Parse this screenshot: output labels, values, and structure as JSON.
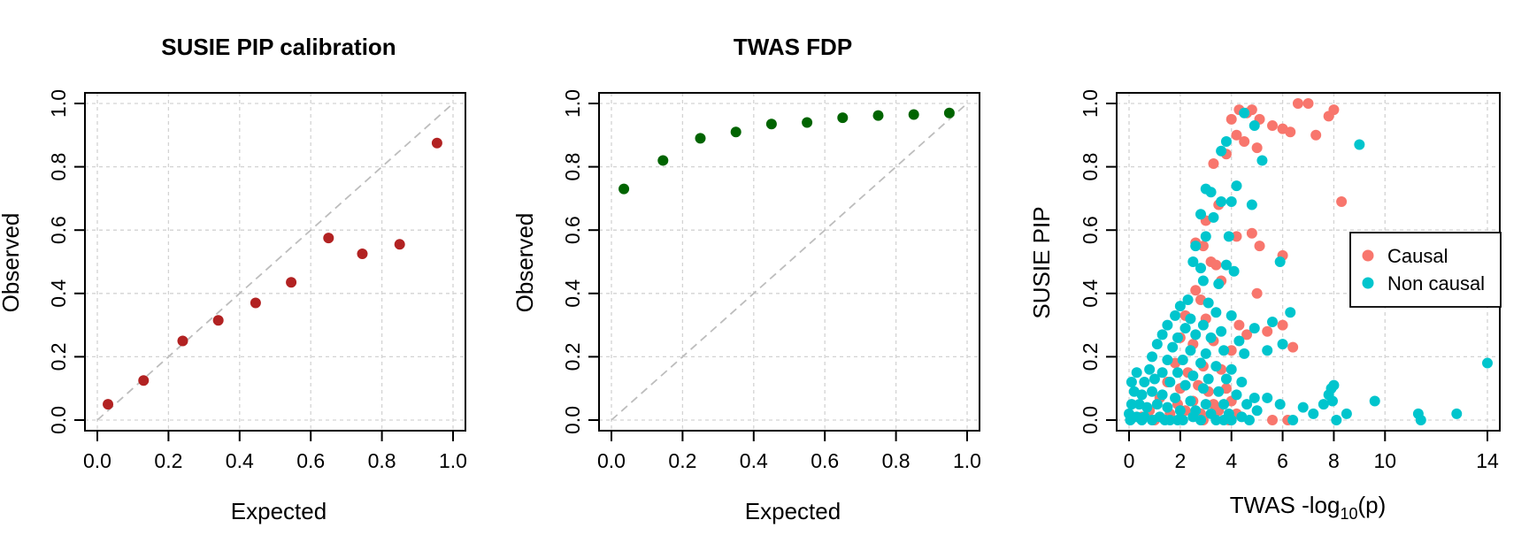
{
  "chart_data": [
    {
      "type": "scatter",
      "title": "SUSIE PIP calibration",
      "xlabel": "Expected",
      "ylabel": "Observed",
      "xlim": [
        0,
        1
      ],
      "ylim": [
        0,
        1
      ],
      "xticks": [
        "0.0",
        "0.2",
        "0.4",
        "0.6",
        "0.8",
        "1.0"
      ],
      "yticks": [
        "0.0",
        "0.2",
        "0.4",
        "0.6",
        "0.8",
        "1.0"
      ],
      "grid": true,
      "reference_line": "y = x (dashed)",
      "point_color": "#b22222",
      "points": [
        {
          "x": 0.03,
          "y": 0.05
        },
        {
          "x": 0.13,
          "y": 0.125
        },
        {
          "x": 0.24,
          "y": 0.25
        },
        {
          "x": 0.34,
          "y": 0.315
        },
        {
          "x": 0.445,
          "y": 0.37
        },
        {
          "x": 0.545,
          "y": 0.435
        },
        {
          "x": 0.65,
          "y": 0.575
        },
        {
          "x": 0.745,
          "y": 0.525
        },
        {
          "x": 0.85,
          "y": 0.555
        },
        {
          "x": 0.955,
          "y": 0.875
        }
      ]
    },
    {
      "type": "scatter",
      "title": "TWAS FDP",
      "xlabel": "Expected",
      "ylabel": "Observed",
      "xlim": [
        0,
        1
      ],
      "ylim": [
        0,
        1
      ],
      "xticks": [
        "0.0",
        "0.2",
        "0.4",
        "0.6",
        "0.8",
        "1.0"
      ],
      "yticks": [
        "0.0",
        "0.2",
        "0.4",
        "0.6",
        "0.8",
        "1.0"
      ],
      "grid": true,
      "reference_line": "y = x (dashed)",
      "point_color": "#006400",
      "points": [
        {
          "x": 0.035,
          "y": 0.73
        },
        {
          "x": 0.145,
          "y": 0.82
        },
        {
          "x": 0.25,
          "y": 0.89
        },
        {
          "x": 0.35,
          "y": 0.91
        },
        {
          "x": 0.45,
          "y": 0.935
        },
        {
          "x": 0.55,
          "y": 0.94
        },
        {
          "x": 0.65,
          "y": 0.955
        },
        {
          "x": 0.75,
          "y": 0.962
        },
        {
          "x": 0.85,
          "y": 0.965
        },
        {
          "x": 0.95,
          "y": 0.97
        }
      ]
    },
    {
      "type": "scatter",
      "title": "",
      "xlabel_main": "TWAS -log",
      "xlabel_sub": "10",
      "xlabel_end": "(p)",
      "ylabel": "SUSIE PIP",
      "xlim": [
        0,
        14
      ],
      "ylim": [
        0,
        1
      ],
      "xticks": [
        "0",
        "2",
        "4",
        "6",
        "8",
        "10",
        "14"
      ],
      "yticks": [
        "0.0",
        "0.2",
        "0.4",
        "0.6",
        "0.8",
        "1.0"
      ],
      "grid": true,
      "legend_position": "right",
      "series": [
        {
          "name": "Causal",
          "color": "#f8766d",
          "points": [
            {
              "x": 4.0,
              "y": 0.95
            },
            {
              "x": 4.3,
              "y": 0.98
            },
            {
              "x": 4.6,
              "y": 0.97
            },
            {
              "x": 4.8,
              "y": 0.98
            },
            {
              "x": 5.1,
              "y": 0.95
            },
            {
              "x": 5.6,
              "y": 0.93
            },
            {
              "x": 6.0,
              "y": 0.92
            },
            {
              "x": 6.3,
              "y": 0.91
            },
            {
              "x": 6.6,
              "y": 1.0
            },
            {
              "x": 7.0,
              "y": 1.0
            },
            {
              "x": 7.8,
              "y": 0.96
            },
            {
              "x": 8.0,
              "y": 0.98
            },
            {
              "x": 7.3,
              "y": 0.9
            },
            {
              "x": 4.2,
              "y": 0.9
            },
            {
              "x": 4.5,
              "y": 0.88
            },
            {
              "x": 5.0,
              "y": 0.86
            },
            {
              "x": 3.3,
              "y": 0.81
            },
            {
              "x": 3.8,
              "y": 0.84
            },
            {
              "x": 8.3,
              "y": 0.69
            },
            {
              "x": 3.5,
              "y": 0.68
            },
            {
              "x": 3.0,
              "y": 0.63
            },
            {
              "x": 2.6,
              "y": 0.56
            },
            {
              "x": 2.9,
              "y": 0.55
            },
            {
              "x": 4.2,
              "y": 0.58
            },
            {
              "x": 4.8,
              "y": 0.59
            },
            {
              "x": 5.1,
              "y": 0.55
            },
            {
              "x": 3.2,
              "y": 0.5
            },
            {
              "x": 3.4,
              "y": 0.49
            },
            {
              "x": 6.0,
              "y": 0.52
            },
            {
              "x": 2.6,
              "y": 0.41
            },
            {
              "x": 2.8,
              "y": 0.38
            },
            {
              "x": 3.6,
              "y": 0.44
            },
            {
              "x": 5.0,
              "y": 0.4
            },
            {
              "x": 2.2,
              "y": 0.33
            },
            {
              "x": 3.0,
              "y": 0.32
            },
            {
              "x": 4.3,
              "y": 0.3
            },
            {
              "x": 5.4,
              "y": 0.28
            },
            {
              "x": 6.0,
              "y": 0.3
            },
            {
              "x": 2.0,
              "y": 0.26
            },
            {
              "x": 2.5,
              "y": 0.24
            },
            {
              "x": 3.3,
              "y": 0.25
            },
            {
              "x": 4.0,
              "y": 0.22
            },
            {
              "x": 4.6,
              "y": 0.27
            },
            {
              "x": 6.4,
              "y": 0.23
            },
            {
              "x": 1.8,
              "y": 0.18
            },
            {
              "x": 2.3,
              "y": 0.15
            },
            {
              "x": 2.9,
              "y": 0.17
            },
            {
              "x": 3.6,
              "y": 0.16
            },
            {
              "x": 1.5,
              "y": 0.12
            },
            {
              "x": 2.0,
              "y": 0.1
            },
            {
              "x": 2.7,
              "y": 0.11
            },
            {
              "x": 3.1,
              "y": 0.09
            },
            {
              "x": 3.8,
              "y": 0.1
            },
            {
              "x": 1.2,
              "y": 0.07
            },
            {
              "x": 1.9,
              "y": 0.05
            },
            {
              "x": 2.5,
              "y": 0.06
            },
            {
              "x": 3.3,
              "y": 0.05
            },
            {
              "x": 4.0,
              "y": 0.06
            },
            {
              "x": 0.8,
              "y": 0.03
            },
            {
              "x": 1.6,
              "y": 0.02
            },
            {
              "x": 2.2,
              "y": 0.03
            },
            {
              "x": 2.8,
              "y": 0.02
            },
            {
              "x": 3.5,
              "y": 0.03
            },
            {
              "x": 4.2,
              "y": 0.02
            },
            {
              "x": 0.5,
              "y": 0.01
            },
            {
              "x": 1.0,
              "y": 0.0
            },
            {
              "x": 5.6,
              "y": 0.0
            },
            {
              "x": 6.2,
              "y": 0.0
            },
            {
              "x": 2.9,
              "y": 0.0
            },
            {
              "x": 3.9,
              "y": 0.0
            }
          ]
        },
        {
          "name": "Non causal",
          "color": "#00c5cd",
          "points": [
            {
              "x": 4.5,
              "y": 0.97
            },
            {
              "x": 3.8,
              "y": 0.88
            },
            {
              "x": 3.6,
              "y": 0.85
            },
            {
              "x": 4.9,
              "y": 0.93
            },
            {
              "x": 5.2,
              "y": 0.82
            },
            {
              "x": 9.0,
              "y": 0.87
            },
            {
              "x": 3.0,
              "y": 0.73
            },
            {
              "x": 3.2,
              "y": 0.72
            },
            {
              "x": 4.2,
              "y": 0.74
            },
            {
              "x": 3.6,
              "y": 0.69
            },
            {
              "x": 4.0,
              "y": 0.69
            },
            {
              "x": 4.8,
              "y": 0.68
            },
            {
              "x": 2.8,
              "y": 0.65
            },
            {
              "x": 3.3,
              "y": 0.64
            },
            {
              "x": 3.9,
              "y": 0.58
            },
            {
              "x": 3.0,
              "y": 0.58
            },
            {
              "x": 2.6,
              "y": 0.55
            },
            {
              "x": 5.9,
              "y": 0.5
            },
            {
              "x": 3.8,
              "y": 0.49
            },
            {
              "x": 2.5,
              "y": 0.5
            },
            {
              "x": 2.8,
              "y": 0.48
            },
            {
              "x": 4.1,
              "y": 0.47
            },
            {
              "x": 2.9,
              "y": 0.44
            },
            {
              "x": 3.5,
              "y": 0.43
            },
            {
              "x": 2.3,
              "y": 0.38
            },
            {
              "x": 2.0,
              "y": 0.36
            },
            {
              "x": 3.1,
              "y": 0.37
            },
            {
              "x": 1.8,
              "y": 0.33
            },
            {
              "x": 2.4,
              "y": 0.32
            },
            {
              "x": 3.4,
              "y": 0.34
            },
            {
              "x": 4.0,
              "y": 0.33
            },
            {
              "x": 5.6,
              "y": 0.31
            },
            {
              "x": 6.3,
              "y": 0.34
            },
            {
              "x": 1.5,
              "y": 0.3
            },
            {
              "x": 2.2,
              "y": 0.29
            },
            {
              "x": 2.9,
              "y": 0.3
            },
            {
              "x": 3.6,
              "y": 0.28
            },
            {
              "x": 4.9,
              "y": 0.29
            },
            {
              "x": 1.3,
              "y": 0.27
            },
            {
              "x": 1.9,
              "y": 0.26
            },
            {
              "x": 2.6,
              "y": 0.27
            },
            {
              "x": 3.2,
              "y": 0.26
            },
            {
              "x": 4.3,
              "y": 0.25
            },
            {
              "x": 6.0,
              "y": 0.24
            },
            {
              "x": 5.4,
              "y": 0.22
            },
            {
              "x": 1.1,
              "y": 0.24
            },
            {
              "x": 1.7,
              "y": 0.23
            },
            {
              "x": 2.4,
              "y": 0.22
            },
            {
              "x": 3.0,
              "y": 0.21
            },
            {
              "x": 3.7,
              "y": 0.22
            },
            {
              "x": 4.5,
              "y": 0.21
            },
            {
              "x": 0.9,
              "y": 0.2
            },
            {
              "x": 1.5,
              "y": 0.19
            },
            {
              "x": 2.1,
              "y": 0.19
            },
            {
              "x": 2.8,
              "y": 0.18
            },
            {
              "x": 3.4,
              "y": 0.17
            },
            {
              "x": 4.0,
              "y": 0.16
            },
            {
              "x": 0.3,
              "y": 0.15
            },
            {
              "x": 0.8,
              "y": 0.16
            },
            {
              "x": 1.3,
              "y": 0.15
            },
            {
              "x": 1.9,
              "y": 0.15
            },
            {
              "x": 2.5,
              "y": 0.14
            },
            {
              "x": 3.1,
              "y": 0.13
            },
            {
              "x": 3.8,
              "y": 0.13
            },
            {
              "x": 4.4,
              "y": 0.12
            },
            {
              "x": 0.1,
              "y": 0.12
            },
            {
              "x": 0.6,
              "y": 0.12
            },
            {
              "x": 1.0,
              "y": 0.13
            },
            {
              "x": 1.6,
              "y": 0.12
            },
            {
              "x": 2.2,
              "y": 0.11
            },
            {
              "x": 2.9,
              "y": 0.1
            },
            {
              "x": 3.5,
              "y": 0.09
            },
            {
              "x": 4.2,
              "y": 0.08
            },
            {
              "x": 4.9,
              "y": 0.07
            },
            {
              "x": 0.2,
              "y": 0.09
            },
            {
              "x": 0.5,
              "y": 0.08
            },
            {
              "x": 0.9,
              "y": 0.09
            },
            {
              "x": 1.3,
              "y": 0.08
            },
            {
              "x": 1.8,
              "y": 0.07
            },
            {
              "x": 2.4,
              "y": 0.06
            },
            {
              "x": 3.0,
              "y": 0.05
            },
            {
              "x": 3.7,
              "y": 0.05
            },
            {
              "x": 4.6,
              "y": 0.05
            },
            {
              "x": 0.1,
              "y": 0.05
            },
            {
              "x": 0.4,
              "y": 0.05
            },
            {
              "x": 0.7,
              "y": 0.04
            },
            {
              "x": 1.1,
              "y": 0.05
            },
            {
              "x": 1.5,
              "y": 0.04
            },
            {
              "x": 2.0,
              "y": 0.03
            },
            {
              "x": 2.6,
              "y": 0.03
            },
            {
              "x": 3.2,
              "y": 0.02
            },
            {
              "x": 3.9,
              "y": 0.02
            },
            {
              "x": 4.4,
              "y": 0.01
            },
            {
              "x": 0.0,
              "y": 0.02
            },
            {
              "x": 0.3,
              "y": 0.01
            },
            {
              "x": 0.6,
              "y": 0.01
            },
            {
              "x": 0.9,
              "y": 0.0
            },
            {
              "x": 1.2,
              "y": 0.01
            },
            {
              "x": 1.6,
              "y": 0.0
            },
            {
              "x": 2.1,
              "y": 0.0
            },
            {
              "x": 2.5,
              "y": 0.01
            },
            {
              "x": 3.4,
              "y": 0.0
            },
            {
              "x": 4.0,
              "y": 0.0
            },
            {
              "x": 4.7,
              "y": 0.0
            },
            {
              "x": 5.0,
              "y": 0.03
            },
            {
              "x": 5.4,
              "y": 0.07
            },
            {
              "x": 5.9,
              "y": 0.05
            },
            {
              "x": 6.4,
              "y": 0.0
            },
            {
              "x": 6.8,
              "y": 0.04
            },
            {
              "x": 7.2,
              "y": 0.02
            },
            {
              "x": 7.6,
              "y": 0.05
            },
            {
              "x": 7.8,
              "y": 0.08
            },
            {
              "x": 7.9,
              "y": 0.1
            },
            {
              "x": 8.0,
              "y": 0.11
            },
            {
              "x": 7.95,
              "y": 0.06
            },
            {
              "x": 8.1,
              "y": 0.0
            },
            {
              "x": 8.5,
              "y": 0.02
            },
            {
              "x": 9.6,
              "y": 0.06
            },
            {
              "x": 11.3,
              "y": 0.02
            },
            {
              "x": 11.4,
              "y": 0.0
            },
            {
              "x": 12.8,
              "y": 0.02
            },
            {
              "x": 14.0,
              "y": 0.18
            },
            {
              "x": 0.05,
              "y": 0.0
            },
            {
              "x": 0.5,
              "y": 0.0
            },
            {
              "x": 1.4,
              "y": 0.0
            },
            {
              "x": 1.9,
              "y": 0.0
            },
            {
              "x": 2.8,
              "y": 0.0
            },
            {
              "x": 3.7,
              "y": 0.0
            }
          ]
        }
      ]
    }
  ]
}
